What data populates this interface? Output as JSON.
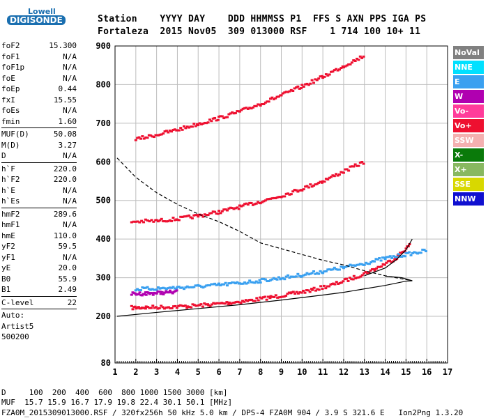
{
  "logo": {
    "line1": "Lowell",
    "line2": "DIGISONDE"
  },
  "header": {
    "line1": "Station    YYYY DAY    DDD HHMMSS P1  FFS S AXN PPS IGA PS",
    "line2": "Fortaleza  2015 Nov05  309 013000 RSF    1 714 100 10+ 11"
  },
  "params": [
    {
      "k": "foF2",
      "v": "15.300"
    },
    {
      "k": "foF1",
      "v": "N/A"
    },
    {
      "k": "foF1p",
      "v": "N/A"
    },
    {
      "k": "foE",
      "v": "N/A"
    },
    {
      "k": "foEp",
      "v": "0.44"
    },
    {
      "k": "fxI",
      "v": "15.55"
    },
    {
      "k": "foEs",
      "v": "N/A"
    },
    {
      "k": "fmin",
      "v": "1.60"
    },
    {
      "sep": true
    },
    {
      "k": "MUF(D)",
      "v": "50.08"
    },
    {
      "k": "M(D)",
      "v": "3.27"
    },
    {
      "k": "D",
      "v": "N/A"
    },
    {
      "sep": true
    },
    {
      "k": "h`F",
      "v": "220.0"
    },
    {
      "k": "h`F2",
      "v": "220.0"
    },
    {
      "k": "h`E",
      "v": "N/A"
    },
    {
      "k": "h`Es",
      "v": "N/A"
    },
    {
      "sep": true
    },
    {
      "k": "hmF2",
      "v": "289.6"
    },
    {
      "k": "hmF1",
      "v": "N/A"
    },
    {
      "k": "hmE",
      "v": "110.0"
    },
    {
      "k": "yF2",
      "v": "59.5"
    },
    {
      "k": "yF1",
      "v": "N/A"
    },
    {
      "k": "yE",
      "v": "20.0"
    },
    {
      "k": "B0",
      "v": "55.9"
    },
    {
      "k": "B1",
      "v": "2.49"
    },
    {
      "sep": true
    },
    {
      "k": "C-level",
      "v": "22"
    },
    {
      "sep": true
    }
  ],
  "auto": [
    "Auto:",
    "Artist5",
    "500200"
  ],
  "legend": [
    {
      "label": "NoVal",
      "bg": "#808080",
      "fg": "#ffffff"
    },
    {
      "label": "NNE",
      "bg": "#00e0ff",
      "fg": "#ffffff"
    },
    {
      "label": "E",
      "bg": "#3aa0f0",
      "fg": "#ffffff"
    },
    {
      "label": "W",
      "bg": "#b000b0",
      "fg": "#ffffff"
    },
    {
      "label": "Vo-",
      "bg": "#ff3c9a",
      "fg": "#ffffff"
    },
    {
      "label": "Vo+",
      "bg": "#ee1030",
      "fg": "#ffffff"
    },
    {
      "label": "SSW",
      "bg": "#f4b0b0",
      "fg": "#ffffff"
    },
    {
      "label": "X-",
      "bg": "#0a7a0a",
      "fg": "#ffffff"
    },
    {
      "label": "X+",
      "bg": "#88b860",
      "fg": "#ffffff"
    },
    {
      "label": "SSE",
      "bg": "#d8d800",
      "fg": "#ffffff"
    },
    {
      "label": "NNW",
      "bg": "#1010d0",
      "fg": "#ffffff"
    }
  ],
  "footer": {
    "line1": "D     100  200  400  600  800 1000 1500 3000 [km]",
    "line2": "MUF  15.7 15.9 16.7 17.9 19.8 22.4 30.1 50.1 [MHz]",
    "line3": "FZA0M_2015309013000.RSF / 320fx256h 50 kHz 5.0 km / DPS-4 FZA0M 904 / 3.9 S 321.6 E   Ion2Png 1.3.20"
  },
  "chart_data": {
    "type": "scatter",
    "xlim": [
      1,
      17
    ],
    "ylim_labels": [
      80,
      200,
      300,
      400,
      500,
      600,
      700,
      800,
      900
    ],
    "x_ticks": [
      1,
      2,
      3,
      4,
      5,
      6,
      7,
      8,
      9,
      10,
      11,
      12,
      13,
      14,
      15,
      16,
      17
    ],
    "y_ticks": [
      80,
      200,
      300,
      400,
      500,
      600,
      700,
      800,
      900
    ],
    "series": [
      {
        "color": "#ee1030",
        "points": [
          [
            1.8,
            222
          ],
          [
            2.5,
            223
          ],
          [
            3.5,
            224
          ],
          [
            4.5,
            226
          ],
          [
            5.5,
            230
          ],
          [
            6.5,
            235
          ],
          [
            7.5,
            241
          ],
          [
            8.5,
            249
          ],
          [
            9.5,
            258
          ],
          [
            10.5,
            268
          ],
          [
            11.5,
            282
          ],
          [
            12.5,
            300
          ],
          [
            13.5,
            322
          ],
          [
            14.5,
            350
          ],
          [
            15.2,
            385
          ]
        ]
      },
      {
        "color": "#ee1030",
        "points": [
          [
            1.8,
            445
          ],
          [
            3,
            447
          ],
          [
            4,
            452
          ],
          [
            5,
            460
          ],
          [
            6,
            470
          ],
          [
            7,
            483
          ],
          [
            8,
            497
          ],
          [
            9,
            512
          ],
          [
            10,
            530
          ],
          [
            11,
            550
          ],
          [
            12,
            575
          ],
          [
            13,
            600
          ]
        ]
      },
      {
        "color": "#ee1030",
        "points": [
          [
            2,
            658
          ],
          [
            3,
            670
          ],
          [
            4,
            683
          ],
          [
            5,
            698
          ],
          [
            6,
            713
          ],
          [
            7,
            730
          ],
          [
            8,
            750
          ],
          [
            9,
            772
          ],
          [
            10,
            795
          ],
          [
            11,
            820
          ],
          [
            12,
            848
          ],
          [
            13,
            875
          ]
        ]
      },
      {
        "color": "#3aa0f0",
        "points": [
          [
            2,
            270
          ],
          [
            3,
            272
          ],
          [
            4,
            274
          ],
          [
            5,
            277
          ],
          [
            6,
            281
          ],
          [
            7,
            286
          ],
          [
            8,
            292
          ],
          [
            9,
            299
          ],
          [
            10,
            307
          ],
          [
            11,
            316
          ],
          [
            12,
            326
          ],
          [
            13,
            337
          ],
          [
            14,
            350
          ],
          [
            15,
            360
          ],
          [
            16,
            370
          ]
        ]
      },
      {
        "color": "#b000b0",
        "points": [
          [
            1.8,
            258
          ],
          [
            2.5,
            259
          ],
          [
            3.2,
            261
          ],
          [
            4,
            263
          ]
        ]
      }
    ],
    "trace_curve": [
      [
        1.1,
        200
      ],
      [
        3,
        210
      ],
      [
        5,
        220
      ],
      [
        7,
        230
      ],
      [
        9,
        242
      ],
      [
        11,
        255
      ],
      [
        12,
        262
      ],
      [
        13,
        271
      ],
      [
        14,
        280
      ],
      [
        15,
        291
      ],
      [
        15.3,
        292
      ],
      [
        14.8,
        300
      ],
      [
        14,
        304
      ]
    ],
    "profile_curve": [
      [
        1.1,
        610
      ],
      [
        2,
        560
      ],
      [
        3,
        520
      ],
      [
        4,
        490
      ],
      [
        5,
        465
      ],
      [
        6,
        445
      ],
      [
        7,
        420
      ],
      [
        8,
        390
      ],
      [
        9,
        375
      ],
      [
        10,
        360
      ],
      [
        11,
        345
      ],
      [
        12,
        333
      ],
      [
        13,
        318
      ],
      [
        14,
        305
      ],
      [
        15,
        295
      ],
      [
        15.3,
        292
      ]
    ],
    "fitted_curve": [
      [
        13,
        305
      ],
      [
        14,
        325
      ],
      [
        14.5,
        345
      ],
      [
        15,
        372
      ],
      [
        15.3,
        400
      ]
    ]
  }
}
